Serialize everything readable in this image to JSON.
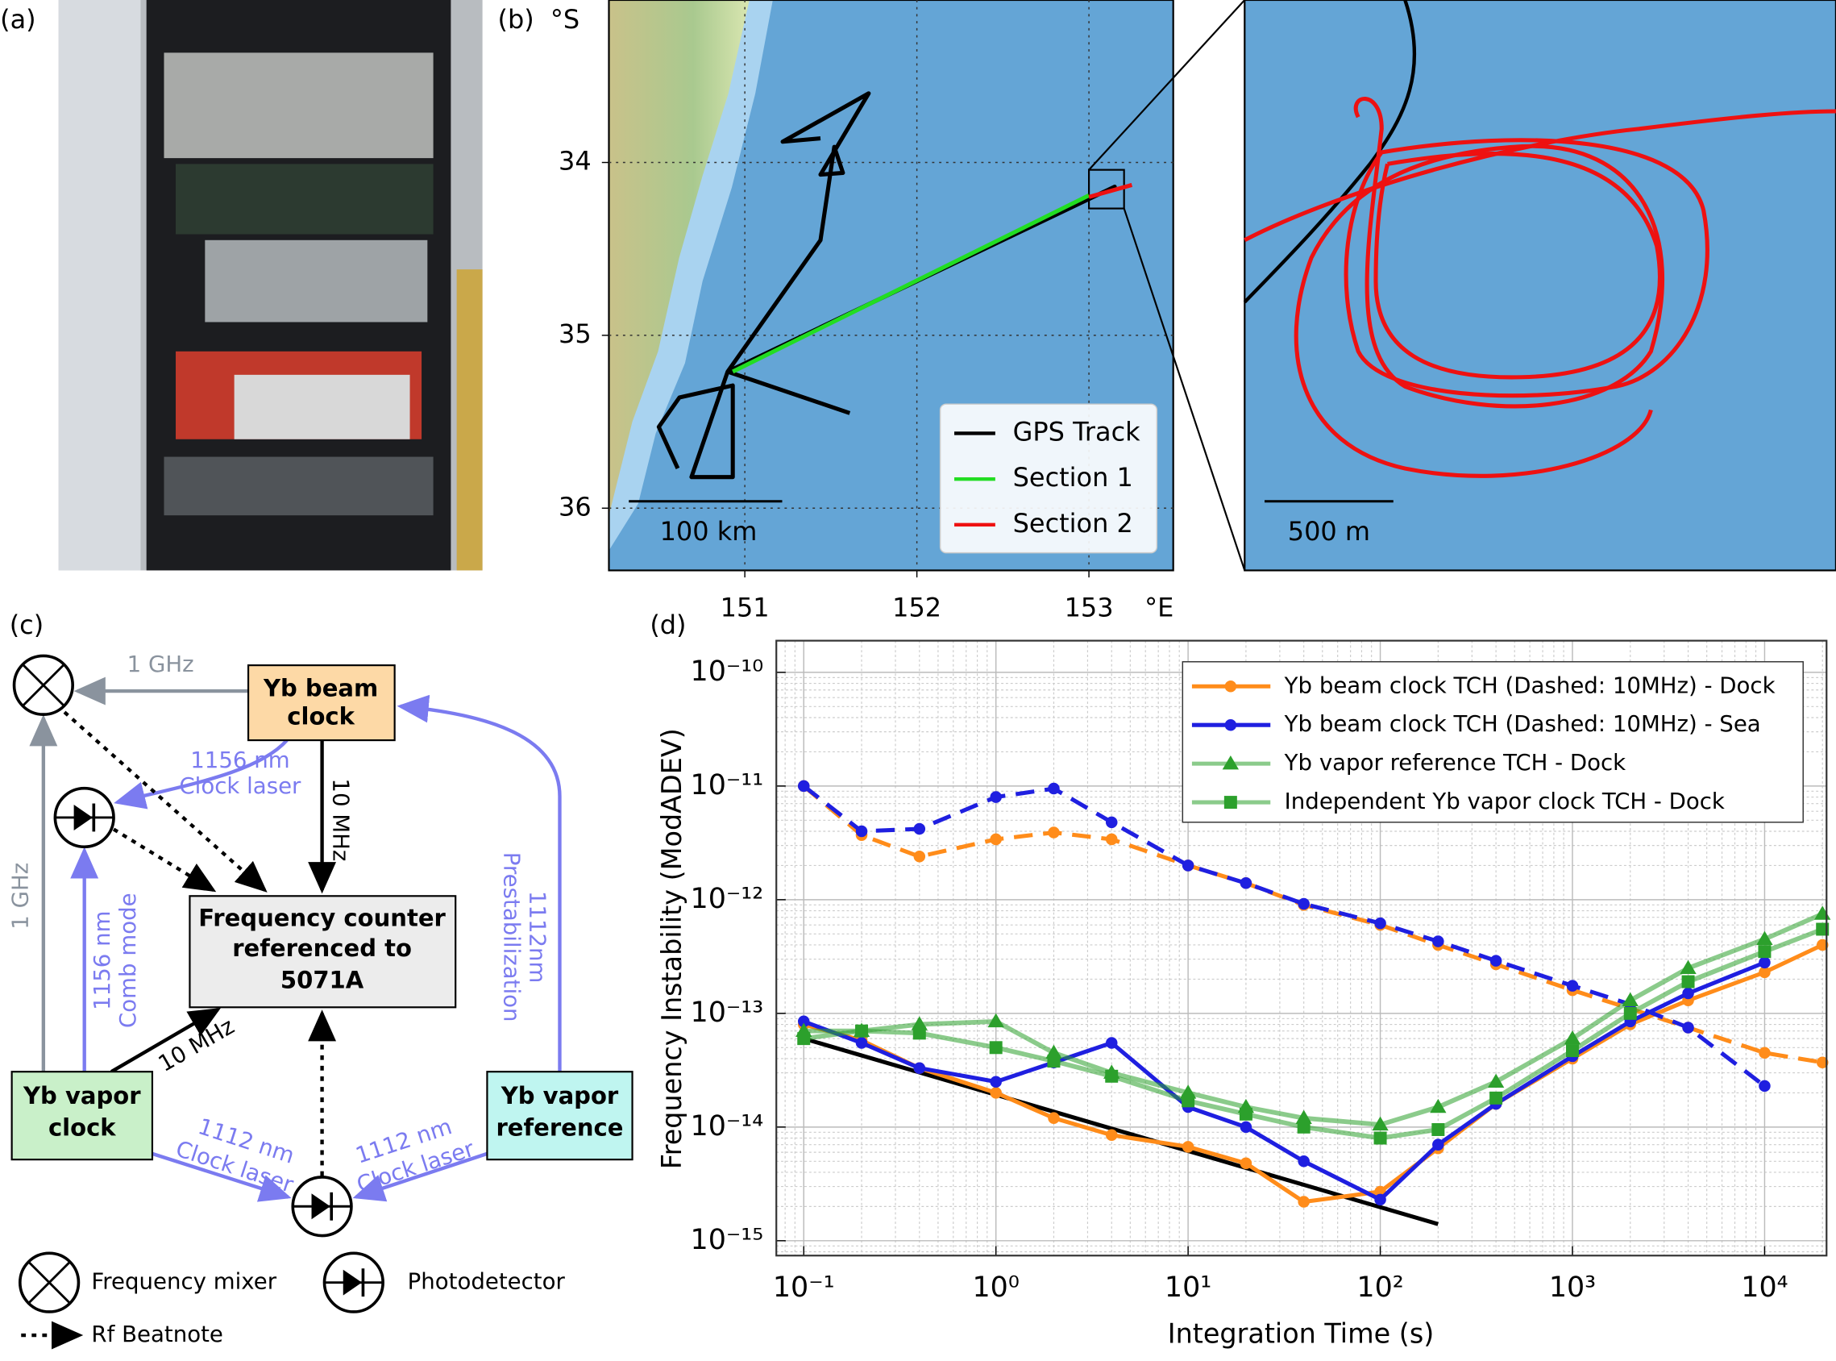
{
  "panel_labels": [
    "(a)",
    "(b)",
    "(c)",
    "(d)"
  ],
  "map": {
    "lat_unit": "°S",
    "lon_unit": "°E",
    "xlim": [
      150.21,
      153.49
    ],
    "ylim": [
      33.06,
      36.36
    ],
    "xticks": [
      151,
      152,
      153
    ],
    "yticks": [
      34,
      35,
      36
    ],
    "grid": true,
    "scale_bar": "100 km",
    "inset_scale_bar": "500 m",
    "legend": [
      {
        "name": "GPS Track",
        "color": "#000000"
      },
      {
        "name": "Section 1",
        "color": "#22dd22"
      },
      {
        "name": "Section 2",
        "color": "#ee1111"
      }
    ],
    "track": [
      [
        151.61,
        35.45
      ],
      [
        150.9,
        35.21
      ],
      [
        153.15,
        34.14
      ],
      [
        150.9,
        35.21
      ],
      [
        151.44,
        34.45
      ],
      [
        151.52,
        33.91
      ],
      [
        151.57,
        34.06
      ],
      [
        151.44,
        34.07
      ],
      [
        151.72,
        33.6
      ],
      [
        151.22,
        33.88
      ],
      [
        151.44,
        33.86
      ],
      null,
      [
        150.9,
        35.21
      ],
      [
        150.69,
        35.82
      ],
      [
        150.93,
        35.82
      ],
      [
        150.93,
        35.29
      ],
      [
        150.62,
        35.36
      ],
      [
        150.5,
        35.53
      ],
      [
        150.61,
        35.77
      ]
    ],
    "section1": [
      [
        150.93,
        35.21
      ],
      [
        153.0,
        34.19
      ]
    ],
    "section2": [
      [
        153.0,
        34.2
      ],
      [
        153.25,
        34.13
      ]
    ]
  },
  "diagram": {
    "nodes": [
      {
        "label": [
          "Yb beam",
          "clock"
        ]
      },
      {
        "label": [
          "Frequency counter",
          "referenced to",
          "5071A"
        ]
      },
      {
        "label": [
          "Yb vapor",
          "clock"
        ]
      },
      {
        "label": [
          "Yb vapor",
          "reference"
        ]
      }
    ],
    "edges": [
      {
        "label": [
          "1 GHz"
        ]
      },
      {
        "label": [
          "1156 nm",
          "Clock laser"
        ]
      },
      {
        "label": [
          "10 MHz"
        ]
      },
      {
        "label": [
          "1 GHz"
        ]
      },
      {
        "label": [
          "1156 nm",
          "Comb mode"
        ]
      },
      {
        "label": [
          "1112nm",
          "Prestabilization"
        ]
      },
      {
        "label": [
          "10 MHz"
        ]
      },
      {
        "label": [
          "1112 nm",
          "Clock laser"
        ]
      },
      {
        "label": [
          "1112 nm",
          "Clock laser"
        ]
      }
    ],
    "legend": [
      "Frequency mixer",
      "Photodetector",
      "Rf Beatnote"
    ]
  },
  "chart_data": {
    "type": "line",
    "xlabel": "Integration Time (s)",
    "ylabel": "Frequency Instability (ModADEV)",
    "log_x": true,
    "log_y": true,
    "grid": true,
    "legend_position": "upper right",
    "xlim": [
      0.072,
      21000
    ],
    "ylim": [
      7.4e-16,
      1.9e-10
    ],
    "xticks": [
      {
        "value": 0.1,
        "label": "10⁻¹"
      },
      {
        "value": 1,
        "label": "10⁰"
      },
      {
        "value": 10,
        "label": "10¹"
      },
      {
        "value": 100,
        "label": "10²"
      },
      {
        "value": 1000,
        "label": "10³"
      },
      {
        "value": 10000,
        "label": "10⁴"
      }
    ],
    "yticks": [
      {
        "value": 1e-15,
        "label": "10⁻¹⁵"
      },
      {
        "value": 1e-14,
        "label": "10⁻¹⁴"
      },
      {
        "value": 1e-13,
        "label": "10⁻¹³"
      },
      {
        "value": 1e-12,
        "label": "10⁻¹²"
      },
      {
        "value": 1e-11,
        "label": "10⁻¹¹"
      },
      {
        "value": 1e-10,
        "label": "10⁻¹⁰"
      }
    ],
    "x": [
      0.1,
      0.2,
      0.4,
      1,
      2,
      4,
      10,
      20,
      40,
      100,
      200,
      400,
      1000,
      2000,
      4000,
      10000,
      20000
    ],
    "series": [
      {
        "name": "Yb beam clock TCH (Dashed: 10MHz) - Dock",
        "color": "#ff8c1a",
        "marker": "circle",
        "values": [
          8e-14,
          5.8e-14,
          3.3e-14,
          2e-14,
          1.2e-14,
          8.5e-15,
          6.7e-15,
          4.8e-15,
          2.2e-15,
          2.7e-15,
          6.5e-15,
          1.6e-14,
          4e-14,
          8e-14,
          1.3e-13,
          2.3e-13,
          4e-13
        ],
        "dashed_values": [
          1e-11,
          3.7e-12,
          2.4e-12,
          3.4e-12,
          3.9e-12,
          3.4e-12,
          2e-12,
          1.4e-12,
          9e-13,
          6e-13,
          4e-13,
          2.7e-13,
          1.6e-13,
          1.1e-13,
          7.5e-14,
          4.5e-14,
          3.7e-14
        ]
      },
      {
        "name": "Yb beam clock TCH (Dashed: 10MHz) - Sea",
        "color": "#1f1fe0",
        "marker": "circle",
        "values": [
          8.5e-14,
          5.5e-14,
          3.3e-14,
          2.5e-14,
          3.7e-14,
          5.5e-14,
          1.5e-14,
          1e-14,
          5e-15,
          2.3e-15,
          7e-15,
          1.6e-14,
          4.2e-14,
          8.5e-14,
          1.5e-13,
          2.8e-13,
          null
        ],
        "dashed_values": [
          1e-11,
          4e-12,
          4.2e-12,
          8e-12,
          9.5e-12,
          4.8e-12,
          2e-12,
          1.4e-12,
          9.2e-13,
          6.2e-13,
          4.3e-13,
          2.9e-13,
          1.75e-13,
          1.2e-13,
          7.5e-14,
          2.3e-14,
          null
        ]
      },
      {
        "name": "Yb vapor reference TCH - Dock",
        "color": "#2ca02c",
        "marker": "triangle",
        "values": [
          7e-14,
          7e-14,
          8e-14,
          8.5e-14,
          4.5e-14,
          3e-14,
          2e-14,
          1.5e-14,
          1.2e-14,
          1.05e-14,
          1.5e-14,
          2.5e-14,
          6e-14,
          1.3e-13,
          2.5e-13,
          4.5e-13,
          7.5e-13
        ]
      },
      {
        "name": "Independent Yb vapor clock TCH - Dock",
        "color": "#2ca02c",
        "marker": "square",
        "values": [
          6e-14,
          7e-14,
          6.7e-14,
          5e-14,
          3.8e-14,
          2.8e-14,
          1.7e-14,
          1.3e-14,
          1e-14,
          8e-15,
          9.5e-15,
          1.8e-14,
          4.7e-14,
          1e-13,
          1.9e-13,
          3.5e-13,
          5.5e-13
        ]
      }
    ],
    "fit_line": {
      "color": "#000000",
      "x": [
        0.1,
        200
      ],
      "values": [
        6e-14,
        1.4e-15
      ]
    }
  }
}
